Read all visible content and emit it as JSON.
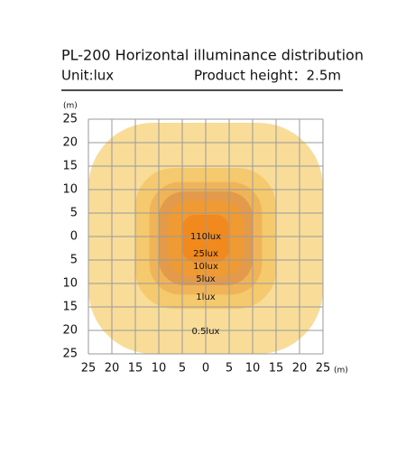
{
  "chart_data": {
    "type": "contour",
    "title": "PL-200 Horizontal illuminance distribution",
    "unit_label": "Unit:lux",
    "height_label": "Product height：2.5m",
    "x_unit": "(m)",
    "y_unit": "(m)",
    "xlim": [
      -25,
      25
    ],
    "ylim": [
      -25,
      25
    ],
    "xticks": [
      {
        "value": -25,
        "label": "25"
      },
      {
        "value": -20,
        "label": "20"
      },
      {
        "value": -15,
        "label": "15"
      },
      {
        "value": -10,
        "label": "10"
      },
      {
        "value": -5,
        "label": "5"
      },
      0,
      5,
      10,
      15,
      20,
      25
    ],
    "yticks": [
      {
        "value": -25,
        "label": "25"
      },
      {
        "value": -20,
        "label": "20"
      },
      {
        "value": -15,
        "label": "15"
      },
      {
        "value": -10,
        "label": "10"
      },
      {
        "value": -5,
        "label": "5"
      },
      0,
      5,
      10,
      15,
      20,
      25
    ],
    "grid": true,
    "levels": [
      {
        "value": 0.5,
        "label": "0.5lux",
        "radius": 25,
        "color": "#f8dc98"
      },
      {
        "value": 1,
        "label": "1lux",
        "radius": 15,
        "color": "#f5c96d"
      },
      {
        "value": 5,
        "label": "5lux",
        "radius": 12,
        "color": "#f0b458"
      },
      {
        "value": 10,
        "label": "10lux",
        "radius": 10,
        "color": "#e39a4a"
      },
      {
        "value": 25,
        "label": "25lux",
        "radius": 8,
        "color": "#ef9a33"
      },
      {
        "value": 110,
        "label": "110lux",
        "radius": 5,
        "color": "#f2891c"
      }
    ]
  }
}
